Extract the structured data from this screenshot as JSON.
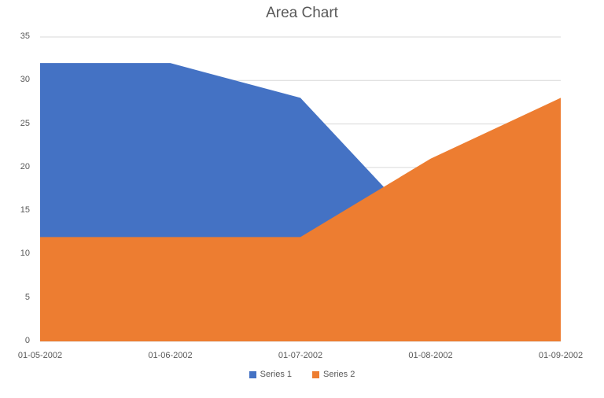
{
  "chart_data": {
    "type": "area",
    "title": "Area Chart",
    "categories": [
      "01-05-2002",
      "01-06-2002",
      "01-07-2002",
      "01-08-2002",
      "01-09-2002"
    ],
    "series": [
      {
        "name": "Series 1",
        "color": "#4472C4",
        "values": [
          32,
          32,
          28,
          12,
          12
        ]
      },
      {
        "name": "Series 2",
        "color": "#ED7D31",
        "values": [
          12,
          12,
          12,
          21,
          28
        ]
      }
    ],
    "xlabel": "",
    "ylabel": "",
    "ylim": [
      0,
      35
    ],
    "yticks": [
      0,
      5,
      10,
      15,
      20,
      25,
      30,
      35
    ],
    "grid": true,
    "legend_position": "bottom",
    "colors": {
      "grid": "#D9D9D9",
      "text": "#595959",
      "background": "#FFFFFF"
    }
  }
}
